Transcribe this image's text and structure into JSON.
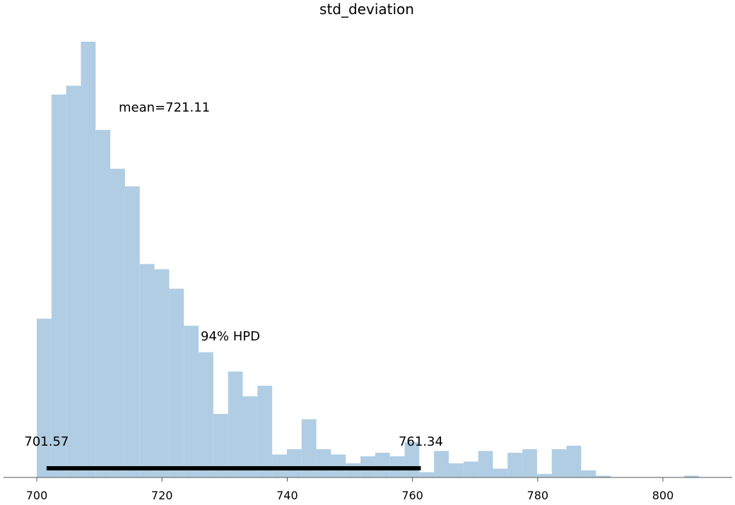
{
  "chart_data": {
    "type": "bar",
    "title": "std_deviation",
    "xlabel": "",
    "ylabel": "",
    "xlim": [
      695,
      811
    ],
    "xticks": [
      700,
      720,
      740,
      760,
      780,
      800
    ],
    "bin_edges": [
      700.0,
      702.35,
      704.7,
      707.05,
      709.4,
      711.75,
      714.1,
      716.45,
      718.8,
      721.15,
      723.5,
      725.85,
      728.2,
      730.55,
      732.9,
      735.25,
      737.6,
      739.95,
      742.3,
      744.65,
      747.0,
      749.35,
      751.7,
      754.05,
      756.4,
      758.75,
      761.1,
      763.45,
      765.8,
      768.15,
      770.5,
      772.85,
      775.2,
      777.55,
      779.9,
      782.25,
      784.6,
      786.95,
      789.3,
      791.65,
      794.0,
      796.35,
      798.7,
      801.05,
      803.4,
      805.75
    ],
    "counts": [
      90,
      217,
      222,
      247,
      197,
      175,
      165,
      121,
      118,
      107,
      86,
      71,
      36,
      60,
      46,
      52,
      13,
      16,
      33,
      16,
      13,
      8,
      12,
      14,
      12,
      20,
      3,
      15,
      8,
      9,
      15,
      5,
      14,
      16,
      2,
      16,
      18,
      4,
      1,
      0,
      0,
      0,
      0,
      0,
      1
    ],
    "mean_label": "mean=721.11",
    "hpd_label": "94% HPD",
    "hpd_interval": [
      701.57,
      761.34
    ],
    "hpd_low_label": "701.57",
    "hpd_high_label": "761.34"
  },
  "colors": {
    "bar": "#b0cde3",
    "hpd_line": "#000000",
    "axis": "#555555"
  }
}
